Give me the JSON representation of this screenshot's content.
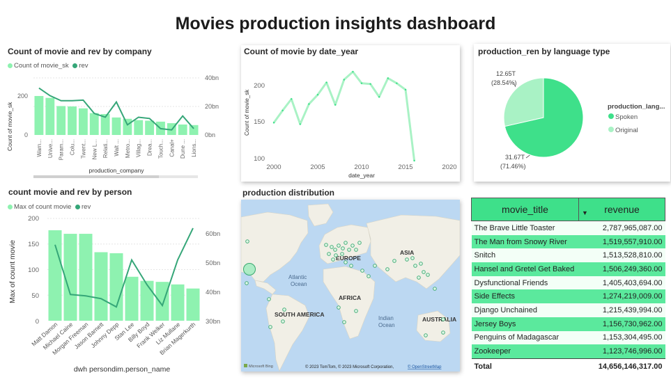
{
  "page_title": "Movies production insights dashboard",
  "colors": {
    "bar": "#8ef2b0",
    "line": "#35a678",
    "accent": "#3ee08a",
    "light": "#a9f2c5"
  },
  "company_chart": {
    "title": "Count of movie and rev by company",
    "legend": [
      "Count of movie_sk",
      "rev"
    ],
    "y_label": "Count of movie_sk",
    "x_label": "production_company",
    "y_ticks": [
      "200",
      "0"
    ],
    "y2_ticks": [
      "40bn",
      "20bn",
      "0bn"
    ]
  },
  "person_chart": {
    "title": "count movie and rev by person",
    "legend": [
      "Max of count movie",
      "rev"
    ],
    "y_label": "Max of count movie",
    "x_label": "dwh persondim.person_name",
    "y_ticks": [
      "200",
      "150",
      "100",
      "50",
      "0"
    ],
    "y2_ticks": [
      "60bn",
      "50bn",
      "40bn",
      "30bn"
    ]
  },
  "year_chart": {
    "title": "Count of movie by date_year",
    "y_label": "Count of movie_sk",
    "x_label": "date_year",
    "y_ticks": [
      "200",
      "150",
      "100"
    ],
    "x_ticks": [
      "2000",
      "2005",
      "2010",
      "2015",
      "2020"
    ]
  },
  "language_chart": {
    "title": "production_ren by language type",
    "legend_title": "production_lang...",
    "label_original": "12.65T",
    "label_original_pct": "(28.54%)",
    "label_spoken": "31.67T",
    "label_spoken_pct": "(71.46%)"
  },
  "map": {
    "title": "production distribution",
    "labels": {
      "europe": "EUROPE",
      "asia": "ASIA",
      "africa": "AFRICA",
      "south_america": "SOUTH AMERICA",
      "australia": "AUSTRALIA",
      "atlantic": "Atlantic",
      "atlantic2": "Ocean",
      "indian": "Indian",
      "indian2": "Ocean"
    },
    "brand": "Microsoft Bing",
    "attribution": "© 2023 TomTom, © 2023 Microsoft Corporation,",
    "osm": "© OpenStreetMap"
  },
  "table": {
    "headers": [
      "movie_title",
      "revenue"
    ],
    "total_label": "Total",
    "total_value": "14,656,146,317.00"
  },
  "chart_data": [
    {
      "type": "bar",
      "title": "Count of movie and rev by company",
      "categories": [
        "Warn...",
        "Unive...",
        "Param...",
        "Colu...",
        "Twent...",
        "New L...",
        "Relati...",
        "Walt ...",
        "Metro...",
        "Villag...",
        "Drea...",
        "Touch...",
        "Canal+",
        "Dune ...",
        "Lions..."
      ],
      "series": [
        {
          "name": "Count of movie_sk",
          "axis": "left",
          "values": [
            205,
            195,
            152,
            150,
            140,
            115,
            110,
            92,
            85,
            78,
            75,
            70,
            62,
            55,
            52
          ]
        },
        {
          "name": "rev",
          "axis": "right",
          "values": [
            37,
            31,
            27,
            27,
            27.5,
            17,
            14,
            26,
            8,
            14,
            13,
            5,
            4,
            15,
            5
          ]
        }
      ],
      "ylim": [
        0,
        300
      ],
      "y2lim": [
        0,
        45
      ]
    },
    {
      "type": "line",
      "title": "Count of movie by date_year",
      "x": [
        2000,
        2001,
        2002,
        2003,
        2004,
        2005,
        2006,
        2007,
        2008,
        2009,
        2010,
        2011,
        2012,
        2013,
        2014,
        2015,
        2016
      ],
      "values": [
        150,
        167,
        183,
        148,
        176,
        189,
        206,
        175,
        210,
        221,
        205,
        204,
        186,
        212,
        205,
        196,
        97
      ],
      "xlim": [
        1999,
        2020
      ],
      "ylim": [
        97,
        227
      ]
    },
    {
      "type": "pie",
      "title": "production_ren by language type",
      "categories": [
        "Spoken",
        "Original"
      ],
      "values": [
        31.67,
        12.65
      ],
      "percent": [
        71.46,
        28.54
      ]
    },
    {
      "type": "bar",
      "title": "count movie and rev by person",
      "categories": [
        "Matt Damon",
        "Michael Caine",
        "Morgan Freeman",
        "Jason Barnett",
        "Johnny Depp",
        "Stan Lee",
        "Billy Boyd",
        "Frank Welker",
        "Liz Mullane",
        "Brian Magerkurth"
      ],
      "series": [
        {
          "name": "Max of count movie",
          "axis": "left",
          "values": [
            177,
            170,
            170,
            134,
            132,
            86,
            78,
            76,
            71,
            63
          ]
        },
        {
          "name": "rev",
          "axis": "right",
          "values": [
            57.5,
            39.5,
            39,
            38,
            35,
            52,
            43,
            35.5,
            52,
            63.5
          ]
        }
      ],
      "ylim": [
        0,
        200
      ],
      "y2lim": [
        30,
        67
      ]
    },
    {
      "type": "table",
      "title": "movie_title / revenue",
      "columns": [
        "movie_title",
        "revenue"
      ],
      "rows": [
        [
          "The Brave Little Toaster",
          "2,787,965,087.00"
        ],
        [
          "The Man from Snowy River",
          "1,519,557,910.00"
        ],
        [
          "Snitch",
          "1,513,528,810.00"
        ],
        [
          "Hansel and Gretel Get Baked",
          "1,506,249,360.00"
        ],
        [
          "Dysfunctional Friends",
          "1,405,403,694.00"
        ],
        [
          "Side Effects",
          "1,274,219,009.00"
        ],
        [
          "Django Unchained",
          "1,215,439,994.00"
        ],
        [
          "Jersey Boys",
          "1,156,730,962.00"
        ],
        [
          "Penguins of Madagascar",
          "1,153,304,495.00"
        ],
        [
          "Zookeeper",
          "1,123,746,996.00"
        ]
      ]
    }
  ]
}
